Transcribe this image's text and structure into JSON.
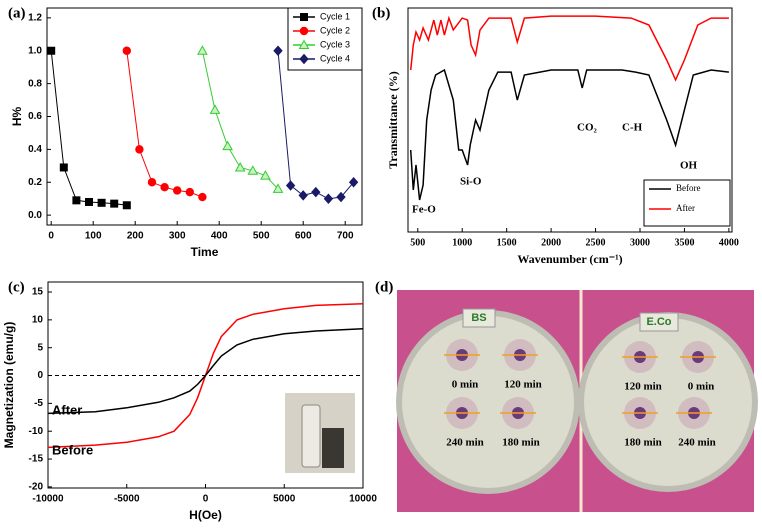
{
  "chart_data": [
    {
      "type": "line",
      "label": "(a)",
      "xlabel": "Time",
      "ylabel": "H%",
      "xlim": [
        -10,
        740
      ],
      "xticks": [
        0,
        100,
        200,
        300,
        400,
        500,
        600,
        700
      ],
      "ylim": [
        -0.06,
        1.26
      ],
      "yticks": [
        {
          "value": 0,
          "label": "0.0"
        },
        {
          "value": 0.2,
          "label": "0.2"
        },
        {
          "value": 0.4,
          "label": "0.4"
        },
        {
          "value": 0.6,
          "label": "0.6"
        },
        {
          "value": 0.8,
          "label": "0.8"
        },
        {
          "value": 1.0,
          "label": "1.0"
        },
        {
          "value": 1.2,
          "label": "1.2"
        }
      ],
      "legend": "upper right",
      "series": [
        {
          "name": "Cycle 1",
          "color": "#000000",
          "marker": "square",
          "x": [
            0,
            30,
            60,
            90,
            120,
            150,
            180
          ],
          "values": [
            1.0,
            0.29,
            0.09,
            0.08,
            0.075,
            0.07,
            0.06
          ]
        },
        {
          "name": "Cycle 2",
          "color": "#ff0000",
          "marker": "circle",
          "x": [
            180,
            210,
            240,
            270,
            300,
            330,
            360
          ],
          "values": [
            1.0,
            0.4,
            0.2,
            0.17,
            0.15,
            0.14,
            0.11
          ]
        },
        {
          "name": "Cycle 3",
          "color": "#33cc33",
          "marker": "triangle",
          "marker_filled": false,
          "x": [
            360,
            390,
            420,
            450,
            480,
            510,
            540
          ],
          "values": [
            1.0,
            0.64,
            0.42,
            0.29,
            0.27,
            0.24,
            0.16
          ]
        },
        {
          "name": "Cycle 4",
          "color": "#1a1a66",
          "marker": "diamond",
          "x": [
            540,
            570,
            600,
            630,
            660,
            690,
            720
          ],
          "values": [
            1.0,
            0.18,
            0.12,
            0.14,
            0.1,
            0.11,
            0.2
          ]
        }
      ]
    },
    {
      "type": "line",
      "label": "(b)",
      "xlabel": "Wavenumber (cm⁻¹)",
      "ylabel": "Transmittance (%)",
      "xlim": [
        390,
        4035
      ],
      "xticks": [
        500,
        1000,
        1500,
        2000,
        2500,
        3000,
        3500,
        4000
      ],
      "ylim": [
        0,
        100
      ],
      "legend": "lower right",
      "annotations": [
        "Fe-O",
        "Si-O",
        "CO₂",
        "C-H",
        "OH"
      ],
      "series": [
        {
          "name": "Before",
          "color": "#000000",
          "x": [
            420,
            450,
            480,
            520,
            560,
            600,
            650,
            700,
            800,
            900,
            960,
            1000,
            1060,
            1090,
            1150,
            1200,
            1300,
            1400,
            1550,
            1620,
            1700,
            2000,
            2300,
            2350,
            2400,
            2800,
            2950,
            3100,
            3300,
            3400,
            3500,
            3600,
            3800,
            4000
          ],
          "values": [
            36.6,
            18.8,
            29.9,
            14.3,
            21,
            50,
            63.4,
            70.1,
            72.3,
            58.9,
            36.6,
            36.6,
            29.9,
            38.8,
            50,
            45.5,
            63.4,
            71.4,
            71.4,
            58.9,
            70.1,
            72.3,
            72.3,
            64.3,
            72.3,
            72.3,
            71.4,
            70.1,
            50,
            38.8,
            54.5,
            70.1,
            72.3,
            71.4
          ]
        },
        {
          "name": "After",
          "color": "#ff0000",
          "x": [
            420,
            450,
            480,
            520,
            560,
            620,
            680,
            720,
            760,
            800,
            850,
            900,
            1000,
            1060,
            1100,
            1150,
            1200,
            1300,
            1550,
            1620,
            1700,
            2000,
            2500,
            2900,
            3100,
            3300,
            3400,
            3500,
            3650,
            3800,
            4000
          ],
          "values": [
            72.3,
            83.5,
            89.3,
            85.7,
            91.1,
            85.7,
            94.6,
            87.9,
            94.6,
            87.9,
            95.5,
            90.2,
            95.5,
            94.6,
            83.5,
            79,
            90.2,
            95.5,
            95.5,
            84.8,
            95.5,
            96.4,
            96.4,
            95.5,
            92.4,
            76.8,
            67.9,
            76.8,
            92.4,
            95.5,
            95.5
          ]
        }
      ]
    },
    {
      "type": "line",
      "label": "(c)",
      "xlabel": "H(Oe)",
      "ylabel": "Magnetization (emu/g)",
      "xlim": [
        -10000,
        10000
      ],
      "xticks": [
        -10000,
        -5000,
        0,
        5000,
        10000
      ],
      "ylim": [
        -20.2,
        16.8
      ],
      "yticks": [
        -20,
        -15,
        -10,
        -5,
        0,
        5,
        10,
        15
      ],
      "zero_line": true,
      "annotations": [
        "After",
        "Before"
      ],
      "series": [
        {
          "color": "#ff0000",
          "x": [
            -10000,
            -7000,
            -5000,
            -3000,
            -2000,
            -1000,
            -500,
            0,
            500,
            1000,
            2000,
            3000,
            5000,
            7000,
            10000
          ],
          "values": [
            -12.9,
            -12.5,
            -12,
            -11,
            -10,
            -7,
            -4,
            0,
            4,
            7,
            10,
            11,
            12,
            12.6,
            12.9
          ]
        },
        {
          "color": "#000000",
          "x": [
            -10000,
            -7000,
            -5000,
            -3000,
            -2000,
            -1000,
            -500,
            0,
            500,
            1000,
            2000,
            3000,
            5000,
            7000,
            10000
          ],
          "values": [
            -6.8,
            -6.5,
            -5.8,
            -4.8,
            -4,
            -2.8,
            -1.6,
            0,
            1.8,
            3.5,
            5.5,
            6.5,
            7.5,
            8,
            8.4
          ]
        }
      ]
    }
  ],
  "photo": {
    "label": "(d)",
    "plates": [
      {
        "name": "BS",
        "wells": [
          "0 min",
          "120 min",
          "240 min",
          "180 min"
        ]
      },
      {
        "name": "E.Co",
        "wells": [
          "120 min",
          "0 min",
          "180 min",
          "240 min"
        ]
      }
    ]
  }
}
